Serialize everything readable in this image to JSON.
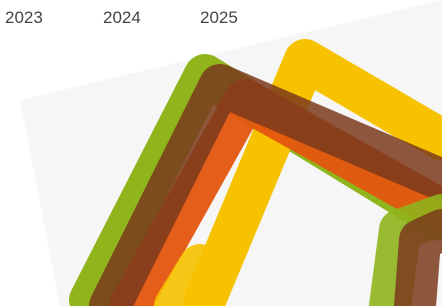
{
  "timeline": {
    "years": [
      "2023",
      "2024",
      "2025"
    ]
  }
}
